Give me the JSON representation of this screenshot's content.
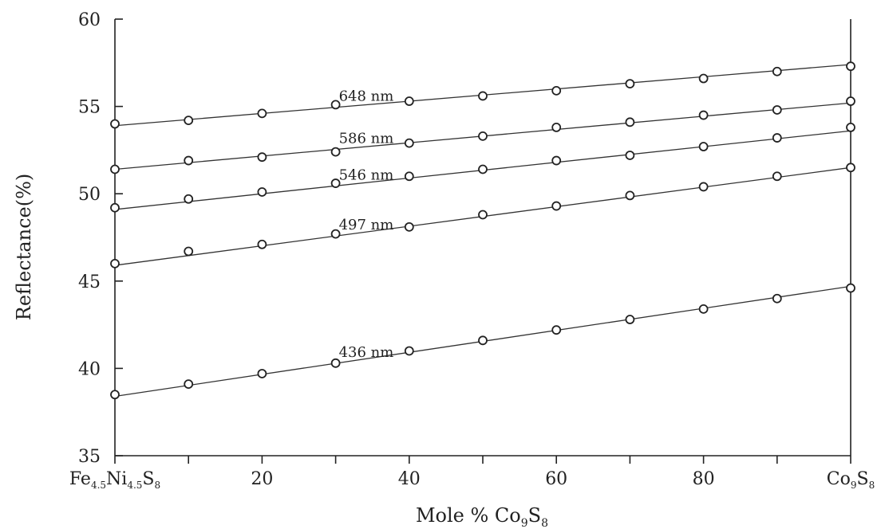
{
  "chart_data": {
    "type": "line",
    "xlabel": "Mole % Co9S8",
    "xlabel_parts": {
      "base": "Mole % Co",
      "sub1": "9",
      "mid": "S",
      "sub2": "8"
    },
    "ylabel": "Reflectance(%)",
    "xlim": [
      0,
      100
    ],
    "ylim": [
      35,
      60
    ],
    "x_ticks": [
      0,
      10,
      20,
      30,
      40,
      50,
      60,
      70,
      80,
      90,
      100
    ],
    "x_tick_labels": [
      {
        "x": 0,
        "parts": [
          [
            "Fe",
            false
          ],
          [
            "4.5",
            true
          ],
          [
            "Ni",
            false
          ],
          [
            "4.5",
            true
          ],
          [
            "S",
            false
          ],
          [
            "8",
            true
          ]
        ]
      },
      {
        "x": 20,
        "parts": [
          [
            "20",
            false
          ]
        ]
      },
      {
        "x": 40,
        "parts": [
          [
            "40",
            false
          ]
        ]
      },
      {
        "x": 60,
        "parts": [
          [
            "60",
            false
          ]
        ]
      },
      {
        "x": 80,
        "parts": [
          [
            "80",
            false
          ]
        ]
      },
      {
        "x": 100,
        "parts": [
          [
            "Co",
            false
          ],
          [
            "9",
            true
          ],
          [
            "S",
            false
          ],
          [
            "8",
            true
          ]
        ]
      }
    ],
    "y_ticks": [
      35,
      40,
      45,
      50,
      55,
      60
    ],
    "y_tick_labels": [
      "35",
      "40",
      "45",
      "50",
      "55",
      "60"
    ],
    "grid": false,
    "x": [
      0,
      10,
      20,
      30,
      40,
      50,
      60,
      70,
      80,
      90,
      100
    ],
    "series": [
      {
        "name": "648 nm",
        "label_at_x": 30,
        "values": [
          54.0,
          54.2,
          54.6,
          55.1,
          55.3,
          55.6,
          55.9,
          56.3,
          56.6,
          57.0,
          57.3
        ],
        "fit": [
          [
            0,
            53.9
          ],
          [
            100,
            57.4
          ]
        ]
      },
      {
        "name": "586 nm",
        "label_at_x": 30,
        "values": [
          51.4,
          51.9,
          52.1,
          52.4,
          52.9,
          53.3,
          53.8,
          54.1,
          54.5,
          54.8,
          55.3
        ],
        "fit": [
          [
            0,
            51.4
          ],
          [
            100,
            55.2
          ]
        ]
      },
      {
        "name": "546 nm",
        "label_at_x": 30,
        "values": [
          49.2,
          49.7,
          50.1,
          50.6,
          51.0,
          51.4,
          51.9,
          52.2,
          52.7,
          53.2,
          53.8
        ],
        "fit": [
          [
            0,
            49.1
          ],
          [
            100,
            53.6
          ]
        ]
      },
      {
        "name": "497 nm",
        "label_at_x": 30,
        "values": [
          46.0,
          46.7,
          47.1,
          47.7,
          48.1,
          48.8,
          49.3,
          49.9,
          50.4,
          51.0,
          51.5
        ],
        "fit": [
          [
            0,
            45.9
          ],
          [
            100,
            51.5
          ]
        ]
      },
      {
        "name": "436 nm",
        "label_at_x": 30,
        "values": [
          38.5,
          39.1,
          39.7,
          40.3,
          41.0,
          41.6,
          42.2,
          42.8,
          43.4,
          44.0,
          44.6
        ],
        "fit": [
          [
            0,
            38.4
          ],
          [
            100,
            44.7
          ]
        ]
      }
    ]
  }
}
